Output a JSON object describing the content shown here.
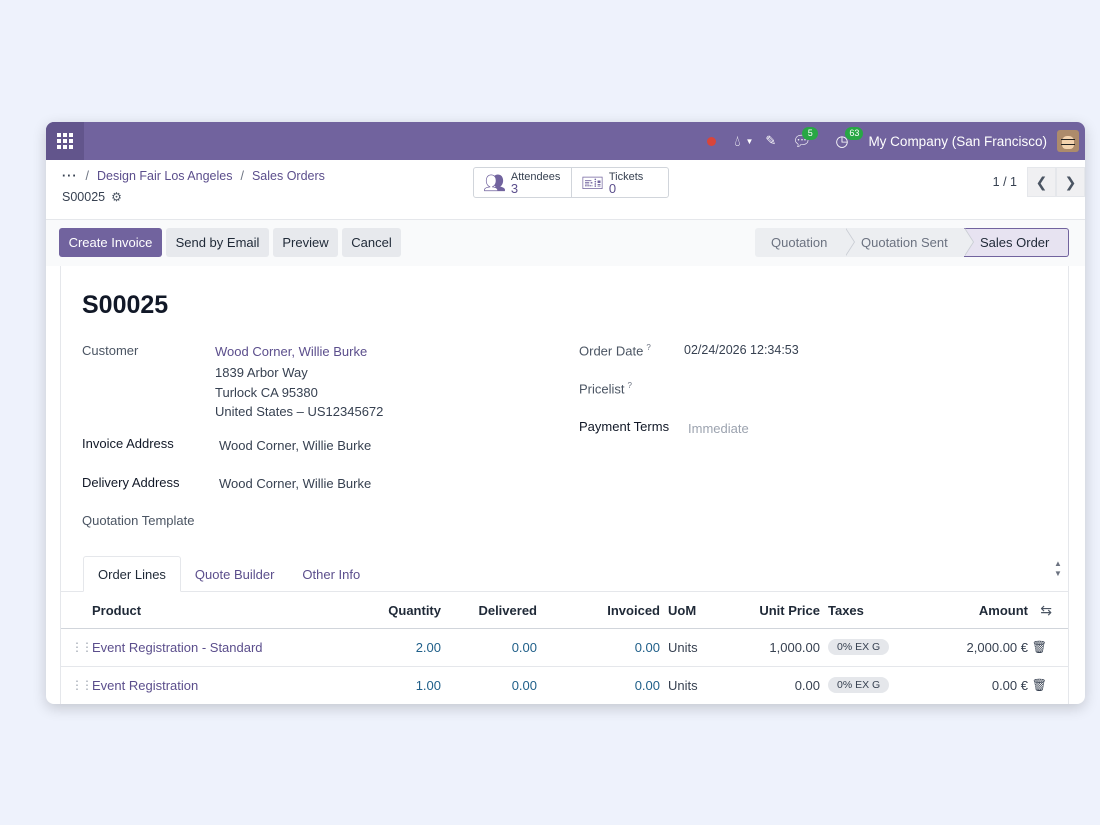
{
  "navbar": {
    "company": "My Company (San Francisco)",
    "chat_count": "5",
    "activity_count": "63"
  },
  "control": {
    "breadcrumb": [
      {
        "label": "Design Fair Los Angeles"
      },
      {
        "label": "Sales Orders"
      }
    ],
    "record": "S00025",
    "smart_buttons": [
      {
        "label": "Attendees",
        "value": "3",
        "icon": "users-icon"
      },
      {
        "label": "Tickets",
        "value": "0",
        "icon": "ticket-icon"
      }
    ],
    "pager": "1 / 1"
  },
  "actions": {
    "create_invoice": "Create Invoice",
    "send_email": "Send by Email",
    "preview": "Preview",
    "cancel": "Cancel"
  },
  "status": {
    "stages": [
      "Quotation",
      "Quotation Sent",
      "Sales Order"
    ],
    "current": "Sales Order"
  },
  "form": {
    "title": "S00025",
    "customer_label": "Customer",
    "customer_name": "Wood Corner, Willie Burke",
    "customer_address": [
      "1839 Arbor Way",
      "Turlock CA 95380",
      "United States – US12345672"
    ],
    "invoice_address_label": "Invoice Address",
    "invoice_address": "Wood Corner, Willie Burke",
    "delivery_address_label": "Delivery Address",
    "delivery_address": "Wood Corner, Willie Burke",
    "quotation_template_label": "Quotation Template",
    "order_date_label": "Order Date",
    "order_date": "02/24/2026 12:34:53",
    "pricelist_label": "Pricelist",
    "payment_terms_label": "Payment Terms",
    "payment_terms_placeholder": "Immediate",
    "help_mark": "?"
  },
  "tabs": [
    "Order Lines",
    "Quote Builder",
    "Other Info"
  ],
  "table": {
    "headers": {
      "product": "Product",
      "quantity": "Quantity",
      "delivered": "Delivered",
      "invoiced": "Invoiced",
      "uom": "UoM",
      "unit_price": "Unit Price",
      "taxes": "Taxes",
      "amount": "Amount"
    },
    "rows": [
      {
        "product": "Event Registration - Standard",
        "quantity": "2.00",
        "delivered": "0.00",
        "invoiced": "0.00",
        "uom": "Units",
        "unit_price": "1,000.00",
        "taxes": "0% EX G",
        "amount": "2,000.00 €"
      },
      {
        "product": "Event Registration",
        "quantity": "1.00",
        "delivered": "0.00",
        "invoiced": "0.00",
        "uom": "Units",
        "unit_price": "0.00",
        "taxes": "0% EX G",
        "amount": "0.00 €"
      }
    ]
  },
  "colors": {
    "brand": "#71639e",
    "link": "#5b4e8c",
    "number": "#21608a"
  }
}
